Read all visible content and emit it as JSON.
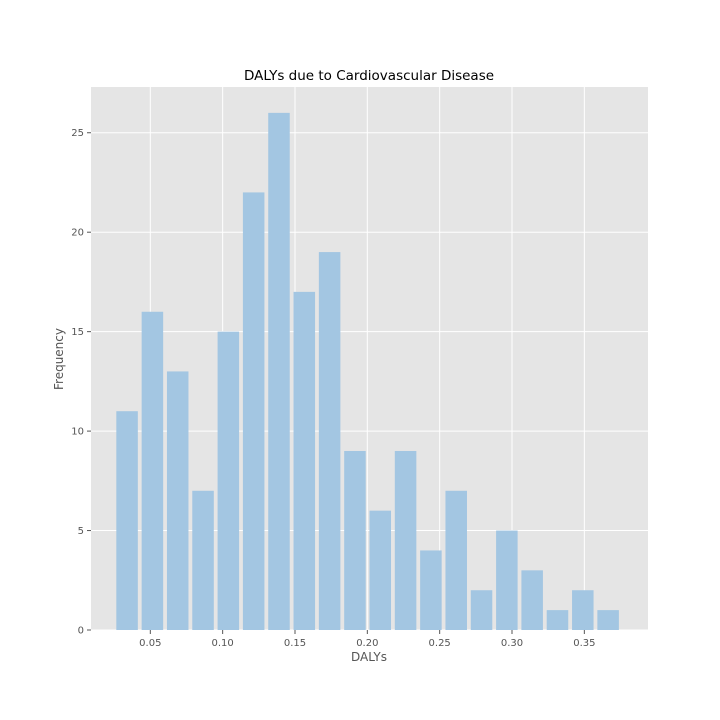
{
  "chart_data": {
    "type": "bar",
    "title": "DALYs due to Cardiovascular Disease",
    "xlabel": "DALYs",
    "ylabel": "Frequency",
    "bin_width": 0.0175,
    "bar_width_fraction": 0.85,
    "bins_start": [
      0.0265,
      0.044,
      0.0615,
      0.079,
      0.0965,
      0.114,
      0.1315,
      0.149,
      0.1665,
      0.184,
      0.2015,
      0.219,
      0.2365,
      0.254,
      0.2715,
      0.289,
      0.3065,
      0.324,
      0.3415,
      0.359
    ],
    "values": [
      11,
      16,
      13,
      7,
      15,
      22,
      26,
      17,
      19,
      9,
      6,
      9,
      4,
      7,
      2,
      5,
      3,
      1,
      2,
      1
    ],
    "xlim": [
      0.009,
      0.394
    ],
    "ylim": [
      0,
      27.3
    ],
    "xticks": [
      0.05,
      0.1,
      0.15,
      0.2,
      0.25,
      0.3,
      0.35
    ],
    "xtick_labels": [
      "0.05",
      "0.10",
      "0.15",
      "0.20",
      "0.25",
      "0.30",
      "0.35"
    ],
    "yticks": [
      0,
      5,
      10,
      15,
      20,
      25
    ],
    "ytick_labels": [
      "0",
      "5",
      "10",
      "15",
      "20",
      "25"
    ],
    "grid": true,
    "colors": {
      "bar": "#a3c6e2",
      "plot_background": "#e5e5e5",
      "grid": "#ffffff"
    }
  }
}
